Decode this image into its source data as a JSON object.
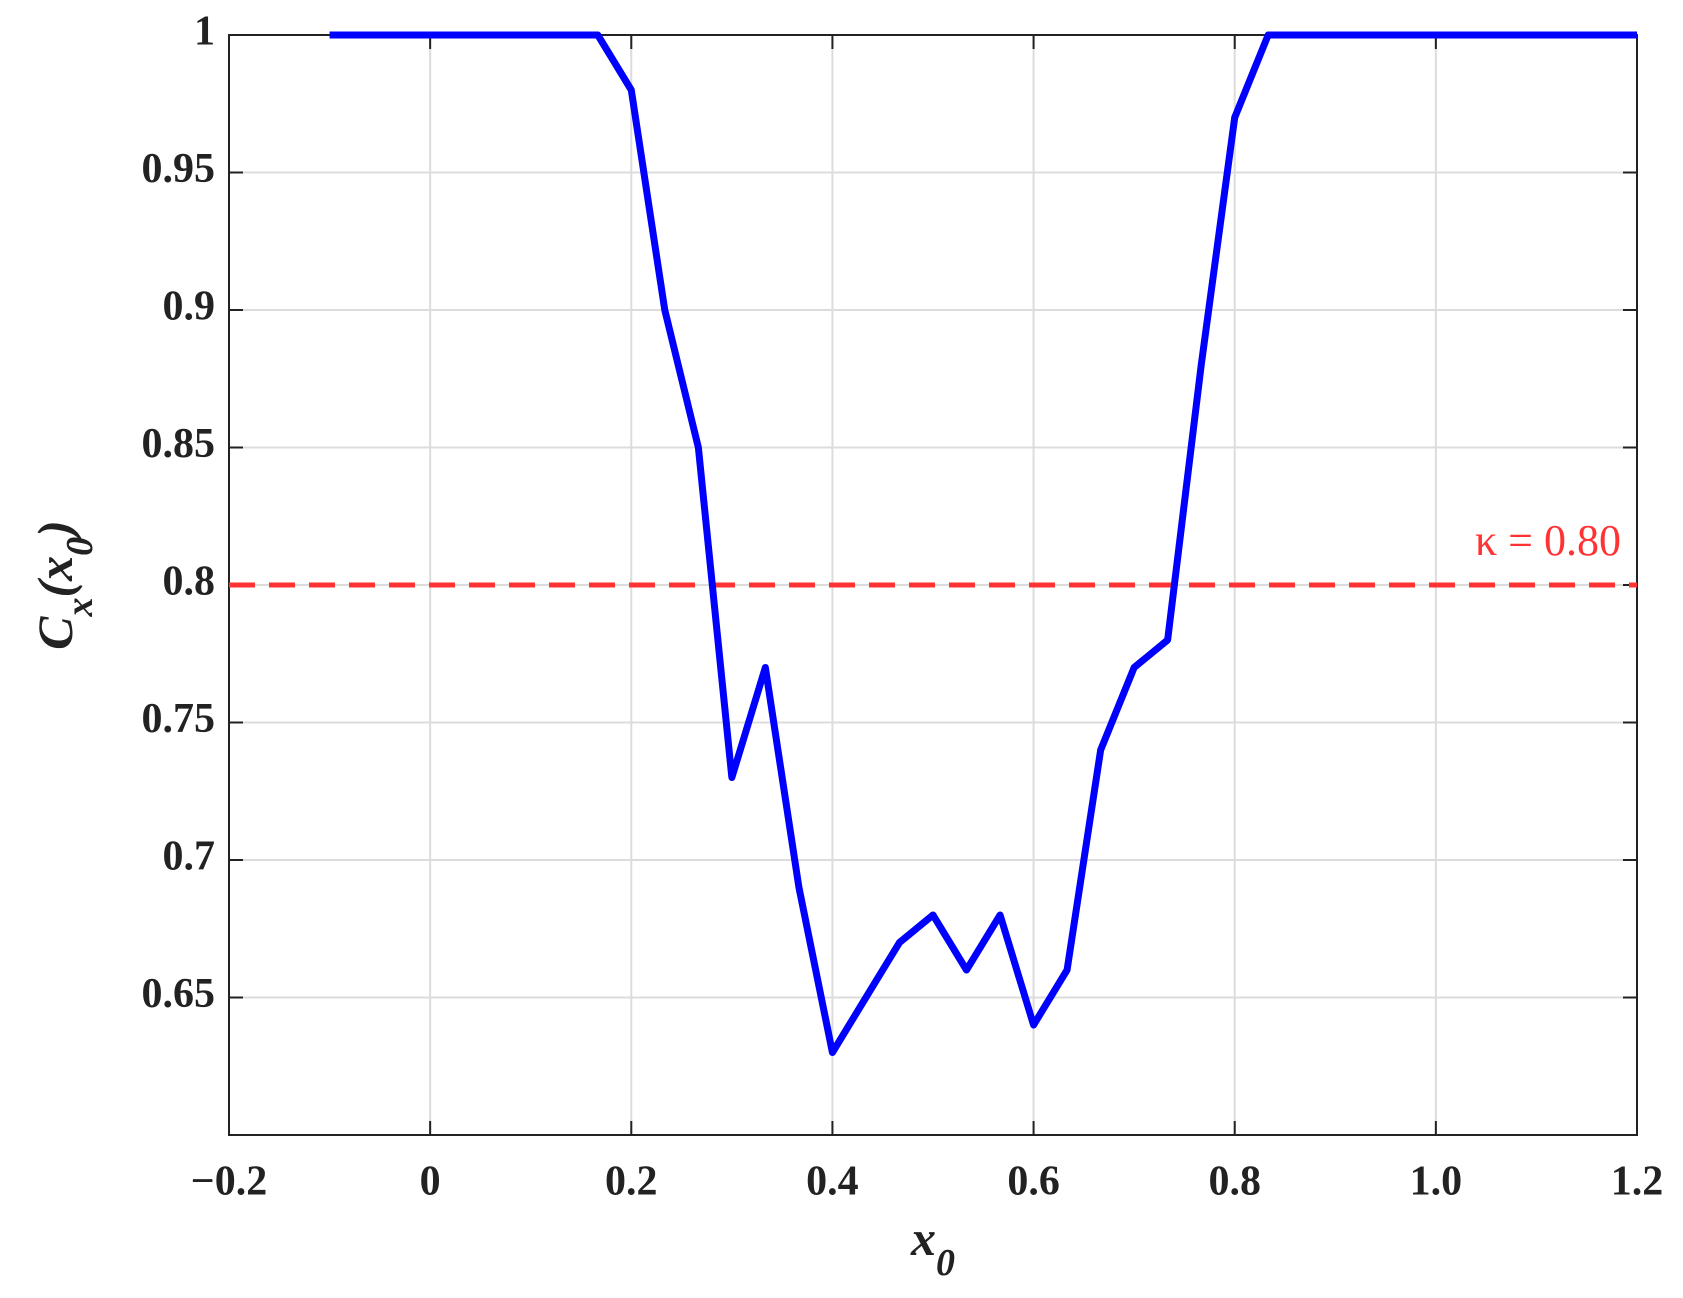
{
  "chart_data": {
    "type": "line",
    "x_label": [
      "x",
      "0"
    ],
    "y_label": [
      "C",
      "x",
      "(x",
      "0",
      ")"
    ],
    "xlim": [
      -0.2,
      1.2
    ],
    "ylim": [
      0.6,
      1
    ],
    "xticks": [
      {
        "value": -0.2,
        "label": "−0.2"
      },
      0,
      0.2,
      0.4,
      0.6,
      0.8,
      {
        "value": 1.0,
        "label": "1.0"
      },
      1.2
    ],
    "yticks": [
      0.65,
      0.7,
      0.75,
      0.8,
      0.85,
      0.9,
      0.95,
      1
    ],
    "grid": true,
    "series": [
      {
        "color": "#0000ff",
        "x": [
          -0.1,
          0.1667,
          0.2,
          0.2333,
          0.2667,
          0.3,
          0.3333,
          0.3667,
          0.4,
          0.4333,
          0.4667,
          0.5,
          0.5333,
          0.5667,
          0.6,
          0.6333,
          0.6667,
          0.7,
          0.7333,
          0.7667,
          0.8,
          0.8333,
          1.2
        ],
        "values": [
          1,
          1,
          0.98,
          0.9,
          0.85,
          0.73,
          0.77,
          0.69,
          0.63,
          0.65,
          0.67,
          0.68,
          0.66,
          0.68,
          0.64,
          0.66,
          0.74,
          0.77,
          0.78,
          0.88,
          0.97,
          1,
          1
        ]
      }
    ],
    "reference_line": {
      "value": 0.8,
      "color": "#ff3333",
      "label": "κ = 0.80"
    }
  }
}
